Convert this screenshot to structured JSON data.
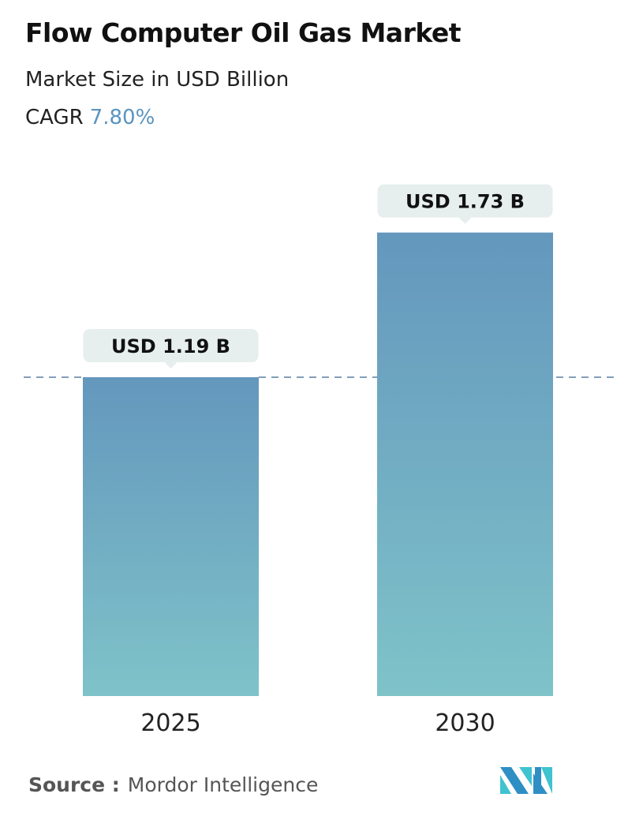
{
  "header": {
    "title": "Flow Computer Oil Gas Market",
    "subtitle": "Market Size in USD Billion",
    "cagr_label": "CAGR",
    "cagr_value": "7.80%"
  },
  "footer": {
    "source_label": "Source :",
    "source_value": "Mordor Intelligence"
  },
  "colors": {
    "bar_top": "#6497bd",
    "bar_bottom": "#7fc3c9",
    "cagr": "#5a94c0",
    "label_bg": "#e6eeee",
    "dash": "#5a7fa0"
  },
  "chart_data": {
    "type": "bar",
    "categories": [
      "2025",
      "2030"
    ],
    "values": [
      1.19,
      1.73
    ],
    "data_labels": [
      "USD 1.19 B",
      "USD 1.73 B"
    ],
    "title": "Flow Computer Oil Gas Market",
    "ylabel": "Market Size in USD Billion",
    "reference_line": 1.19,
    "grid": false
  }
}
